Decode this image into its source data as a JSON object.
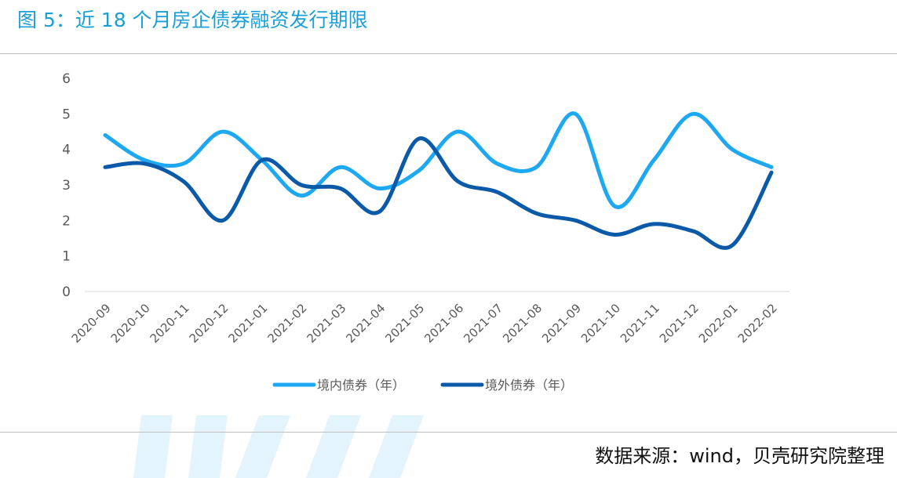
{
  "title": "图 5：近 18 个月房企债券融资发行期限",
  "source": "数据来源：wind，贝壳研究院整理",
  "colors": {
    "title": "#1a9fd8",
    "domestic": "#1ea8f2",
    "overseas": "#0b5aa8",
    "watermark": "#e3f4fd"
  },
  "chart_data": {
    "type": "line",
    "smooth": true,
    "categories": [
      "2020-09",
      "2020-10",
      "2020-11",
      "2020-12",
      "2021-01",
      "2021-02",
      "2021-03",
      "2021-04",
      "2021-05",
      "2021-06",
      "2021-07",
      "2021-08",
      "2021-09",
      "2021-10",
      "2021-11",
      "2021-12",
      "2022-01",
      "2022-02"
    ],
    "ylim": [
      0,
      6
    ],
    "yticks": [
      0,
      1,
      2,
      3,
      4,
      5,
      6
    ],
    "grid": false,
    "legend": "bottom",
    "series": [
      {
        "name": "境内债券（年）",
        "color": "#1ea8f2",
        "values": [
          4.4,
          3.7,
          3.6,
          4.5,
          3.7,
          2.7,
          3.5,
          2.9,
          3.4,
          4.5,
          3.6,
          3.5,
          5.0,
          2.4,
          3.7,
          5.0,
          4.0,
          3.5
        ]
      },
      {
        "name": "境外债券（年）",
        "color": "#0b5aa8",
        "values": [
          3.5,
          3.6,
          3.1,
          2.0,
          3.7,
          3.0,
          2.9,
          2.25,
          4.3,
          3.1,
          2.8,
          2.2,
          2.0,
          1.6,
          1.9,
          1.7,
          1.3,
          3.35
        ]
      }
    ]
  }
}
